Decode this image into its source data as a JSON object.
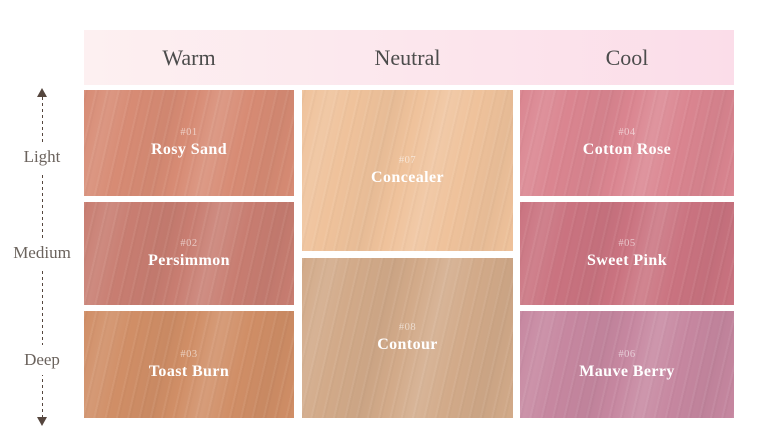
{
  "header": {
    "columns": [
      {
        "id": "warm",
        "label": "Warm"
      },
      {
        "id": "neutral",
        "label": "Neutral"
      },
      {
        "id": "cool",
        "label": "Cool"
      }
    ],
    "background_left": "#fdf0f1",
    "background_right": "#fbdde9",
    "text_color": "#4c4c4c"
  },
  "depth_axis": {
    "labels": [
      "Light",
      "Medium",
      "Deep"
    ],
    "line_color": "#55463e",
    "label_color": "#6b635d"
  },
  "shades": {
    "warm": [
      {
        "number": "#01",
        "name": "Rosy Sand",
        "color": "#d78b74",
        "depth": "Light"
      },
      {
        "number": "#02",
        "name": "Persimmon",
        "color": "#c87d71",
        "depth": "Medium"
      },
      {
        "number": "#03",
        "name": "Toast Burn",
        "color": "#d08e66",
        "depth": "Deep"
      }
    ],
    "neutral": [
      {
        "number": "#07",
        "name": "Concealer",
        "color": "#efc29b",
        "depth": "Light-Medium"
      },
      {
        "number": "#08",
        "name": "Contour",
        "color": "#d2aa89",
        "depth": "Medium-Deep"
      }
    ],
    "cool": [
      {
        "number": "#04",
        "name": "Cotton Rose",
        "color": "#da8590",
        "depth": "Light"
      },
      {
        "number": "#05",
        "name": "Sweet Pink",
        "color": "#ca7380",
        "depth": "Medium"
      },
      {
        "number": "#06",
        "name": "Mauve Berry",
        "color": "#c687a0",
        "depth": "Deep"
      }
    ]
  }
}
